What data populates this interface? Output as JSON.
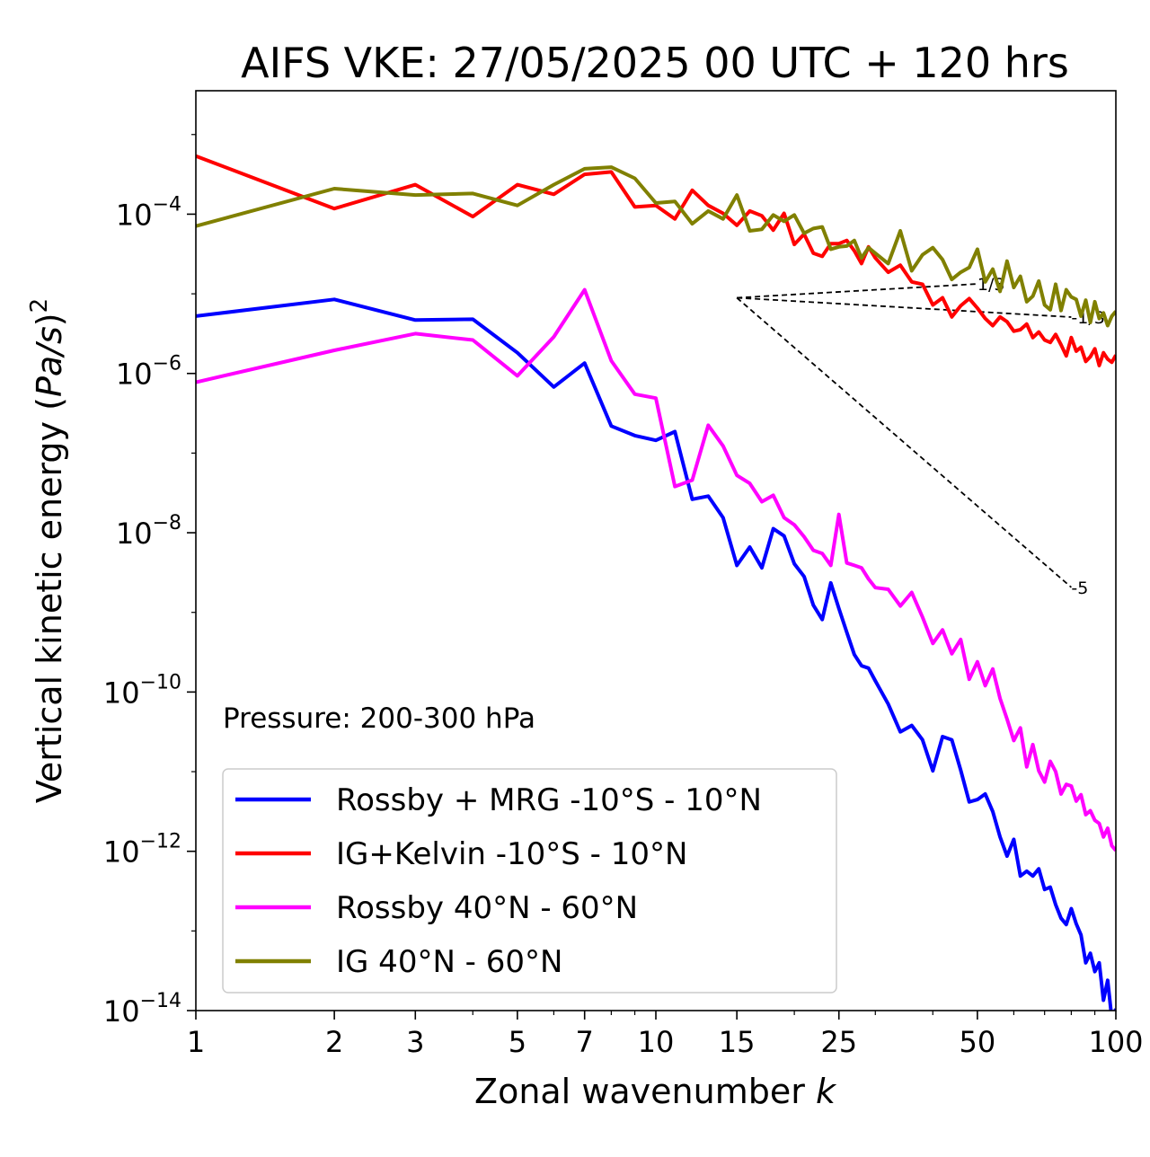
{
  "chart_data": {
    "type": "line",
    "title": "AIFS VKE: 27/05/2025 00 UTC + 120 hrs",
    "xlabel_main": "Zonal wavenumber ",
    "xlabel_italic": "k",
    "ylabel_main": "Vertical kinetic energy (",
    "ylabel_italic": "Pa/s",
    "ylabel_close": ")",
    "ylabel_sup": "2",
    "xscale": "log",
    "yscale": "log",
    "xlim": [
      1,
      100
    ],
    "ylim_exp": [
      -14,
      -2.45
    ],
    "grid": false,
    "legend_position": "lower-left",
    "annotation": "Pressure: 200-300 hPa",
    "x_ticks": [
      1,
      2,
      3,
      5,
      7,
      10,
      15,
      25,
      50,
      100
    ],
    "x_tick_labels": [
      "1",
      "2",
      "3",
      "5",
      "7",
      "10",
      "15",
      "25",
      "50",
      "100"
    ],
    "y_tick_exps": [
      -4,
      -6,
      -8,
      -10,
      -12,
      -14
    ],
    "y_tick_base": "10",
    "y_tick_sups": [
      "−4",
      "−6",
      "−8",
      "−10",
      "−12",
      "−14"
    ],
    "series": [
      {
        "name": "Rossby + MRG -10°S - 10°N",
        "color": "#0000ff",
        "x": [
          1,
          2,
          3,
          4,
          5,
          6,
          7,
          8,
          9,
          10,
          11,
          12,
          13,
          14,
          15,
          16,
          17,
          18,
          19,
          20,
          21,
          22,
          23,
          24,
          25,
          26,
          27,
          28,
          29,
          30,
          32,
          34,
          36,
          38,
          40,
          42,
          44,
          46,
          48,
          50,
          52,
          54,
          56,
          58,
          60,
          62,
          64,
          66,
          68,
          70,
          72,
          74,
          76,
          78,
          80,
          82,
          84,
          86,
          88,
          90,
          92,
          94,
          96,
          98,
          100
        ],
        "y_exp": [
          -5.28,
          -5.07,
          -5.33,
          -5.32,
          -5.74,
          -6.17,
          -5.87,
          -6.66,
          -6.78,
          -6.84,
          -6.73,
          -7.58,
          -7.54,
          -7.81,
          -8.41,
          -8.18,
          -8.44,
          -7.95,
          -8.04,
          -8.39,
          -8.55,
          -8.91,
          -9.09,
          -8.63,
          -8.95,
          -9.25,
          -9.53,
          -9.67,
          -9.7,
          -9.86,
          -10.15,
          -10.5,
          -10.42,
          -10.6,
          -10.99,
          -10.56,
          -10.6,
          -10.98,
          -11.38,
          -11.35,
          -11.28,
          -11.5,
          -11.82,
          -12.06,
          -11.85,
          -12.31,
          -12.25,
          -12.31,
          -12.22,
          -12.48,
          -12.45,
          -12.67,
          -12.84,
          -12.92,
          -12.72,
          -12.91,
          -13.05,
          -13.4,
          -13.28,
          -13.51,
          -13.4,
          -13.87,
          -13.62,
          -14.1,
          -13.98
        ]
      },
      {
        "name": "IG+Kelvin -10°S - 10°N",
        "color": "#ff0000",
        "x": [
          1,
          2,
          3,
          4,
          5,
          6,
          7,
          8,
          9,
          10,
          11,
          12,
          13,
          14,
          15,
          16,
          17,
          18,
          19,
          20,
          21,
          22,
          23,
          24,
          25,
          26,
          27,
          28,
          29,
          30,
          32,
          34,
          36,
          38,
          40,
          42,
          44,
          46,
          48,
          50,
          52,
          54,
          56,
          58,
          60,
          62,
          64,
          66,
          68,
          70,
          72,
          74,
          76,
          78,
          80,
          82,
          84,
          86,
          88,
          90,
          92,
          94,
          96,
          98,
          100
        ],
        "y_exp": [
          -3.27,
          -3.93,
          -3.63,
          -4.03,
          -3.63,
          -3.75,
          -3.5,
          -3.47,
          -3.91,
          -3.89,
          -4.06,
          -3.7,
          -3.89,
          -3.99,
          -4.14,
          -3.96,
          -4.02,
          -4.2,
          -3.99,
          -4.38,
          -4.25,
          -4.49,
          -4.53,
          -4.37,
          -4.37,
          -4.33,
          -4.46,
          -4.62,
          -4.41,
          -4.55,
          -4.73,
          -4.64,
          -4.85,
          -4.88,
          -5.14,
          -5.05,
          -5.29,
          -5.15,
          -5.06,
          -5.18,
          -5.31,
          -5.4,
          -5.29,
          -5.35,
          -5.47,
          -5.45,
          -5.38,
          -5.55,
          -5.48,
          -5.58,
          -5.61,
          -5.51,
          -5.64,
          -5.78,
          -5.55,
          -5.72,
          -5.67,
          -5.85,
          -5.79,
          -5.69,
          -5.9,
          -5.74,
          -5.82,
          -5.86,
          -5.77
        ]
      },
      {
        "name": "Rossby 40°N - 60°N",
        "color": "#ff00ff",
        "x": [
          1,
          2,
          3,
          4,
          5,
          6,
          7,
          8,
          9,
          10,
          11,
          12,
          13,
          14,
          15,
          16,
          17,
          18,
          19,
          20,
          21,
          22,
          23,
          24,
          25,
          26,
          27,
          28,
          29,
          30,
          32,
          34,
          36,
          38,
          40,
          42,
          44,
          46,
          48,
          50,
          52,
          54,
          56,
          58,
          60,
          62,
          64,
          66,
          68,
          70,
          72,
          74,
          76,
          78,
          80,
          82,
          84,
          86,
          88,
          90,
          92,
          94,
          96,
          98,
          100
        ],
        "y_exp": [
          -6.11,
          -5.71,
          -5.5,
          -5.58,
          -6.03,
          -5.54,
          -4.95,
          -5.84,
          -6.26,
          -6.31,
          -7.42,
          -7.34,
          -6.65,
          -6.91,
          -7.28,
          -7.38,
          -7.61,
          -7.53,
          -7.81,
          -7.9,
          -8.05,
          -8.22,
          -8.26,
          -8.41,
          -7.77,
          -8.38,
          -8.41,
          -8.44,
          -8.58,
          -8.69,
          -8.71,
          -8.92,
          -8.75,
          -9.06,
          -9.39,
          -9.22,
          -9.52,
          -9.34,
          -9.84,
          -9.62,
          -9.92,
          -9.71,
          -10.08,
          -10.34,
          -10.61,
          -10.45,
          -10.94,
          -10.66,
          -10.99,
          -11.13,
          -10.87,
          -11.0,
          -11.28,
          -11.16,
          -11.18,
          -11.37,
          -11.29,
          -11.54,
          -11.49,
          -11.61,
          -11.65,
          -11.82,
          -11.71,
          -11.93,
          -11.99
        ]
      },
      {
        "name": "IG 40°N - 60°N",
        "color": "#808000",
        "x": [
          1,
          2,
          3,
          4,
          5,
          6,
          7,
          8,
          9,
          10,
          11,
          12,
          13,
          14,
          15,
          16,
          17,
          18,
          19,
          20,
          21,
          22,
          23,
          24,
          25,
          26,
          27,
          28,
          29,
          30,
          32,
          34,
          36,
          38,
          40,
          42,
          44,
          46,
          48,
          50,
          52,
          54,
          56,
          58,
          60,
          62,
          64,
          66,
          68,
          70,
          72,
          74,
          76,
          78,
          80,
          82,
          84,
          86,
          88,
          90,
          92,
          94,
          96,
          98,
          100
        ],
        "y_exp": [
          -4.15,
          -3.68,
          -3.76,
          -3.74,
          -3.89,
          -3.63,
          -3.43,
          -3.41,
          -3.55,
          -3.86,
          -3.84,
          -4.12,
          -3.96,
          -4.06,
          -3.76,
          -4.21,
          -4.19,
          -4.01,
          -4.09,
          -4.01,
          -4.24,
          -4.18,
          -4.16,
          -4.44,
          -4.41,
          -4.4,
          -4.33,
          -4.55,
          -4.42,
          -4.49,
          -4.62,
          -4.21,
          -4.71,
          -4.51,
          -4.42,
          -4.57,
          -4.82,
          -4.73,
          -4.67,
          -4.44,
          -4.85,
          -4.69,
          -4.97,
          -4.59,
          -4.92,
          -4.78,
          -5.1,
          -5.03,
          -4.84,
          -5.14,
          -5.2,
          -4.88,
          -5.21,
          -4.95,
          -5.04,
          -5.07,
          -5.28,
          -5.08,
          -5.36,
          -5.1,
          -5.31,
          -5.24,
          -5.4,
          -5.28,
          -5.22
        ]
      }
    ],
    "reference_slopes": [
      {
        "label": "1/3",
        "x_start": 15,
        "x_end": 50,
        "exp_start": -5.05
      },
      {
        "label": "-1/3",
        "x_start": 15,
        "x_end": 80,
        "exp_start": -5.05
      },
      {
        "label": "-5",
        "x_start": 15,
        "x_end": 80,
        "exp_start": -5.05
      }
    ]
  }
}
